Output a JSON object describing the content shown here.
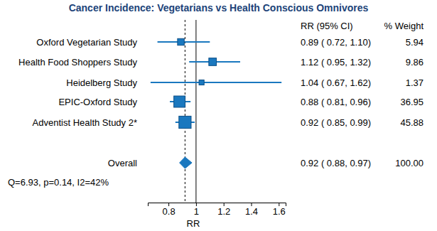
{
  "chart_data": {
    "type": "forest",
    "title": "Cancer Incidence: Vegetarians vs Health Conscious Omnivores",
    "columns": [
      "RR (95% CI)",
      "% Weight"
    ],
    "categories": [
      "Oxford Vegetarian Study",
      "Health Food Shoppers Study",
      "Heidelberg Study",
      "EPIC-Oxford Study",
      "Adventist Health Study 2*"
    ],
    "values": [
      0.89,
      1.12,
      1.04,
      0.88,
      0.92
    ],
    "ci_lower": [
      0.72,
      0.95,
      0.67,
      0.81,
      0.85
    ],
    "ci_upper": [
      1.1,
      1.32,
      1.62,
      0.96,
      0.99
    ],
    "value_labels": [
      "0.89 ( 0.72, 1.10)",
      "1.12 ( 0.95, 1.32)",
      "1.04 ( 0.67, 1.62)",
      "0.88 ( 0.81, 0.96)",
      "0.92 ( 0.85, 0.99)"
    ],
    "weights": [
      5.94,
      9.86,
      1.37,
      36.95,
      45.88
    ],
    "weight_labels": [
      "5.94",
      "9.86",
      "1.37",
      "36.95",
      "45.88"
    ],
    "overall": {
      "label": "Overall",
      "value": 0.92,
      "ci_lower": 0.88,
      "ci_upper": 0.97,
      "value_label": "0.92 ( 0.88, 0.97)",
      "weight_label": "100.00"
    },
    "annotation": "Q=6.93, p=0.14, I2=42%",
    "reference": 1,
    "x_label": "RR",
    "xlim": [
      0.65,
      1.65
    ],
    "xticks": [
      0.8,
      1,
      1.2,
      1.4,
      1.6
    ],
    "color": "#1a78bf"
  }
}
